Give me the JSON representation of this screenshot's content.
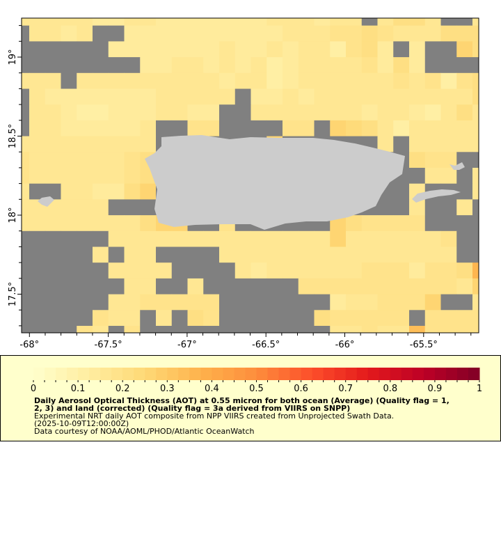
{
  "chart_data": {
    "type": "heatmap",
    "lon_range": [
      -68.05,
      -65.17
    ],
    "lat_range": [
      17.26,
      19.24
    ],
    "x_ticks": [
      -68,
      -67.5,
      -67,
      -66.5,
      -66,
      -65.5
    ],
    "x_tick_labels": [
      "-68°",
      "-67.5°",
      "-67°",
      "-66.5°",
      "-66°",
      "-65.5°"
    ],
    "y_ticks": [
      19,
      18.5,
      18,
      17.5
    ],
    "y_tick_labels": [
      "19°",
      "18.5°",
      "18°",
      "17.5°"
    ],
    "grid_step_deg": 0.1,
    "nodata_color": "#808080",
    "land_color": "#cccccc",
    "colorbar": {
      "min": 0,
      "max": 1,
      "steps": 40,
      "tick_labels": [
        "0",
        "0.1",
        "0.2",
        "0.3",
        "0.4",
        "0.5",
        "0.6",
        "0.7",
        "0.8",
        "0.9",
        "1"
      ],
      "colormap": [
        "#ffffcc",
        "#ffeda0",
        "#fed976",
        "#feb24c",
        "#fd8d3c",
        "#fc4e2a",
        "#e31a1c",
        "#bd0026",
        "#800026"
      ]
    },
    "values_rows_north_to_south": [
      [
        0.15,
        0.15,
        0.15,
        0.15,
        0.15,
        0.14,
        0.14,
        0.15,
        0.15,
        0.14,
        0.14,
        0.14,
        0.14,
        0.14,
        0.14,
        0.14,
        0.16,
        0.16,
        0.16,
        0.14,
        0.15,
        0.16,
        null,
        0.17,
        0.22,
        0.2,
        0.17,
        null,
        null,
        0.15
      ],
      [
        null,
        0.17,
        0.17,
        0.14,
        0.16,
        null,
        null,
        0.14,
        0.14,
        0.14,
        0.14,
        0.14,
        0.14,
        0.14,
        0.14,
        0.14,
        0.14,
        0.15,
        0.15,
        0.15,
        0.18,
        0.19,
        0.2,
        0.19,
        0.15,
        0.15,
        0.15,
        0.2,
        0.2,
        0.2
      ],
      [
        null,
        null,
        null,
        null,
        null,
        null,
        0.14,
        0.14,
        0.14,
        0.14,
        0.14,
        0.14,
        0.14,
        0.15,
        0.14,
        0.14,
        0.15,
        0.14,
        0.15,
        0.16,
        0.1,
        0.18,
        0.22,
        0.13,
        null,
        0.14,
        null,
        null,
        0.25,
        0.2
      ],
      [
        null,
        null,
        null,
        null,
        null,
        null,
        null,
        null,
        0.14,
        0.14,
        0.15,
        0.15,
        0.14,
        0.15,
        0.14,
        0.16,
        0.12,
        0.14,
        0.16,
        0.17,
        0.17,
        0.17,
        0.18,
        0.14,
        0.22,
        0.14,
        null,
        null,
        null,
        null
      ],
      [
        0.17,
        0.16,
        0.16,
        null,
        0.15,
        0.15,
        0.15,
        0.15,
        0.15,
        0.15,
        0.15,
        0.15,
        0.15,
        0.14,
        0.17,
        0.15,
        0.11,
        0.14,
        0.15,
        0.16,
        0.16,
        0.16,
        0.16,
        0.17,
        0.19,
        0.17,
        0.18,
        0.11,
        0.18,
        0.2
      ],
      [
        null,
        0.16,
        0.14,
        0.14,
        0.14,
        0.14,
        0.14,
        0.14,
        0.14,
        0.15,
        0.15,
        0.15,
        0.15,
        0.15,
        null,
        0.14,
        0.14,
        0.15,
        0.13,
        0.15,
        0.15,
        0.16,
        0.16,
        0.17,
        0.17,
        0.17,
        0.16,
        0.15,
        0.16,
        0.2
      ],
      [
        null,
        0.16,
        0.16,
        0.14,
        0.12,
        0.12,
        0.14,
        0.14,
        0.14,
        0.17,
        0.17,
        0.14,
        0.13,
        null,
        null,
        0.15,
        0.17,
        0.15,
        0.16,
        0.16,
        0.17,
        0.16,
        0.14,
        0.15,
        0.15,
        0.14,
        0.12,
        0.15,
        0.2,
        0.16
      ],
      [
        null,
        0.17,
        0.17,
        0.14,
        0.14,
        0.14,
        0.14,
        0.14,
        0.17,
        null,
        null,
        0.18,
        0.18,
        null,
        null,
        null,
        null,
        0.19,
        0.19,
        null,
        0.27,
        0.23,
        0.21,
        0.17,
        0.11,
        0.15,
        0.15,
        0.16,
        0.16,
        0.15
      ],
      [
        0.17,
        0.16,
        0.16,
        0.15,
        0.15,
        0.15,
        0.15,
        0.15,
        0.17,
        null,
        null,
        0.25,
        null,
        null,
        null,
        null,
        0.25,
        null,
        null,
        null,
        null,
        null,
        null,
        0.16,
        null,
        0.17,
        0.17,
        0.17,
        0.17,
        0.17
      ],
      [
        0.18,
        0.17,
        0.17,
        0.15,
        0.15,
        0.16,
        0.17,
        0.18,
        0.2,
        null,
        null,
        null,
        null,
        null,
        null,
        null,
        null,
        null,
        null,
        null,
        null,
        null,
        null,
        null,
        null,
        0.2,
        0.18,
        0.18,
        null,
        null
      ],
      [
        0.18,
        0.17,
        0.17,
        0.15,
        0.15,
        0.16,
        0.17,
        0.18,
        0.22,
        null,
        null,
        null,
        null,
        null,
        null,
        null,
        null,
        null,
        null,
        null,
        null,
        null,
        null,
        null,
        null,
        null,
        0.17,
        0.17,
        null,
        0.17
      ],
      [
        0.16,
        null,
        null,
        0.17,
        0.16,
        0.14,
        0.14,
        0.2,
        0.27,
        null,
        null,
        null,
        null,
        null,
        null,
        null,
        null,
        null,
        null,
        null,
        null,
        null,
        null,
        null,
        null,
        0.17,
        null,
        null,
        null,
        0.17
      ],
      [
        0.15,
        0.15,
        0.15,
        0.15,
        0.15,
        0.15,
        null,
        null,
        null,
        null,
        null,
        null,
        null,
        null,
        null,
        null,
        null,
        null,
        null,
        null,
        null,
        null,
        null,
        null,
        null,
        0.17,
        null,
        null,
        0.17,
        null
      ],
      [
        0.15,
        0.15,
        0.15,
        0.15,
        0.15,
        0.15,
        0.15,
        0.17,
        0.2,
        0.25,
        0.25,
        null,
        null,
        0.18,
        null,
        null,
        null,
        null,
        null,
        null,
        0.25,
        0.2,
        0.19,
        0.19,
        0.18,
        0.18,
        null,
        null,
        null,
        null
      ],
      [
        null,
        null,
        null,
        null,
        null,
        null,
        0.15,
        0.15,
        0.15,
        0.16,
        0.16,
        0.17,
        0.17,
        0.16,
        0.16,
        0.17,
        0.17,
        0.17,
        0.17,
        0.16,
        0.26,
        0.16,
        0.17,
        0.17,
        0.17,
        0.17,
        0.17,
        0.18,
        null,
        null
      ],
      [
        null,
        null,
        null,
        null,
        null,
        0.15,
        null,
        0.16,
        0.17,
        null,
        null,
        null,
        null,
        0.17,
        0.16,
        0.16,
        0.16,
        0.16,
        0.16,
        0.16,
        0.16,
        0.16,
        0.16,
        0.17,
        0.16,
        0.16,
        0.17,
        0.17,
        null,
        null
      ],
      [
        null,
        null,
        null,
        null,
        null,
        null,
        0.16,
        0.16,
        0.16,
        0.15,
        null,
        null,
        null,
        null,
        0.16,
        0.13,
        0.16,
        0.16,
        0.16,
        0.16,
        0.16,
        0.16,
        0.18,
        0.18,
        0.18,
        0.13,
        0.18,
        0.18,
        0.2,
        0.36
      ],
      [
        null,
        null,
        null,
        null,
        null,
        null,
        null,
        0.15,
        0.15,
        null,
        null,
        0.17,
        null,
        null,
        null,
        null,
        null,
        null,
        0.18,
        0.18,
        0.18,
        0.19,
        0.18,
        0.18,
        0.18,
        0.19,
        0.19,
        0.19,
        0.15,
        0.26
      ],
      [
        null,
        null,
        null,
        null,
        null,
        null,
        0.17,
        0.17,
        0.18,
        0.18,
        0.19,
        0.19,
        0.19,
        null,
        null,
        null,
        null,
        null,
        null,
        null,
        0.14,
        0.17,
        0.17,
        0.18,
        0.18,
        0.18,
        0.25,
        null,
        null,
        0.17
      ],
      [
        null,
        null,
        null,
        null,
        null,
        0.18,
        0.16,
        0.16,
        null,
        0.17,
        null,
        0.2,
        0.19,
        null,
        null,
        null,
        null,
        null,
        null,
        0.21,
        0.19,
        0.19,
        0.19,
        0.19,
        0.19,
        null,
        0.19,
        0.19,
        0.18,
        0.18
      ],
      [
        null,
        null,
        null,
        null,
        0.18,
        0.16,
        null,
        0.19,
        null,
        null,
        null,
        null,
        null,
        null,
        null,
        null,
        null,
        null,
        null,
        null,
        0.17,
        0.17,
        0.18,
        0.17,
        0.17,
        0.34,
        0.18,
        0.18,
        0.18,
        0.18
      ]
    ]
  },
  "legend": {
    "title_line1": "Daily Aerosol Optical Thickness (AOT) at 0.55 micron for both ocean (Average) (Quality flag = 1,",
    "title_line2": "2, 3) and land (corrected) (Quality flag = 3a derived from VIIRS on SNPP)",
    "description": "Experimental NRT daily AOT composite from NPP VIIRS created from Unprojected Swath Data.",
    "time": "(2025-10-09T12:00:00Z)",
    "credit": "Data courtesy of NOAA/AOML/PHOD/Atlantic OceanWatch"
  }
}
